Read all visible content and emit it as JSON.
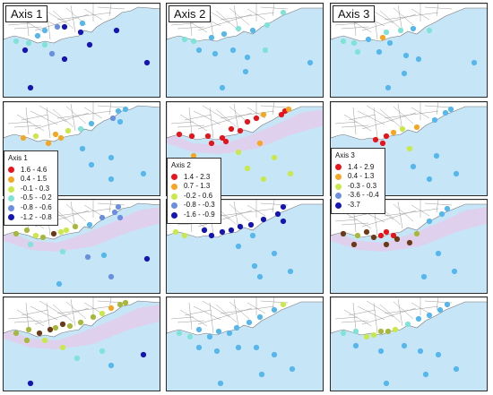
{
  "columns": [
    {
      "title": "Axis 1"
    },
    {
      "title": "Axis 2"
    },
    {
      "title": "Axis 3"
    }
  ],
  "legends": [
    {
      "title": "Axis 1",
      "items": [
        {
          "label": "1.6 - 4.6",
          "color": "#e8141b"
        },
        {
          "label": "0.4 - 1.5",
          "color": "#f5a623"
        },
        {
          "label": "-0.1 - 0.3",
          "color": "#c9e84a"
        },
        {
          "label": "-0.5 - -0.2",
          "color": "#7fe3d8"
        },
        {
          "label": "-0.8 - -0.6",
          "color": "#6a8fe0"
        },
        {
          "label": "-1.2 - -0.8",
          "color": "#1515b5"
        }
      ]
    },
    {
      "title": "Axis 2",
      "items": [
        {
          "label": "1.4 - 2.3",
          "color": "#e8141b"
        },
        {
          "label": "0.7 - 1.3",
          "color": "#f5a623"
        },
        {
          "label": "-0.2 - 0.6",
          "color": "#c9e84a"
        },
        {
          "label": "-0.8 - -0.3",
          "color": "#6a8fe0"
        },
        {
          "label": "-1.6 - -0.9",
          "color": "#1515b5"
        }
      ]
    },
    {
      "title": "Axis 3",
      "items": [
        {
          "label": "1.4 - 2.9",
          "color": "#e8141b"
        },
        {
          "label": "0.4 - 1.3",
          "color": "#f5a623"
        },
        {
          "label": "-0.3 - 0.3",
          "color": "#c9e84a"
        },
        {
          "label": "-3.6 - -0.4",
          "color": "#6a8fe0"
        },
        {
          "label": "-3.7",
          "color": "#1515b5"
        }
      ]
    }
  ],
  "colors": {
    "sea": "#c6e6f8",
    "land": "#ffffff",
    "road": "#9a9a9a",
    "deep_blue": "#1515b5",
    "mid_blue": "#6a8fe0",
    "light_blue": "#56b7ec",
    "cyan": "#7fe3d8",
    "yellow_green": "#c9e84a",
    "olive": "#a8b83a",
    "orange": "#f5a623",
    "red": "#e8141b",
    "dark_brown": "#6b3a17"
  }
}
